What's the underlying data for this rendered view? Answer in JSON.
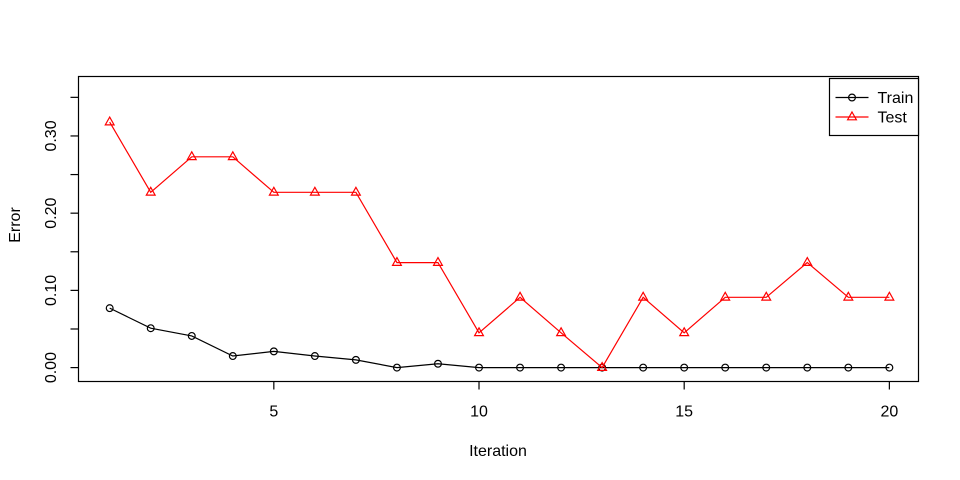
{
  "chart_data": {
    "type": "line",
    "title": "",
    "xlabel": "Iteration",
    "ylabel": "Error",
    "x": [
      1,
      2,
      3,
      4,
      5,
      6,
      7,
      8,
      9,
      10,
      11,
      12,
      13,
      14,
      15,
      16,
      17,
      18,
      19,
      20
    ],
    "series": [
      {
        "name": "Train",
        "color": "#000000",
        "marker": "circle",
        "values": [
          0.077,
          0.051,
          0.041,
          0.015,
          0.021,
          0.015,
          0.01,
          0.0,
          0.005,
          0.0,
          0.0,
          0.0,
          0.0,
          0.0,
          0.0,
          0.0,
          0.0,
          0.0,
          0.0,
          0.0
        ]
      },
      {
        "name": "Test",
        "color": "#ff0000",
        "marker": "triangle",
        "values": [
          0.318,
          0.227,
          0.273,
          0.273,
          0.227,
          0.227,
          0.227,
          0.136,
          0.136,
          0.045,
          0.091,
          0.045,
          0.0,
          0.091,
          0.045,
          0.091,
          0.091,
          0.136,
          0.091,
          0.091
        ]
      }
    ],
    "xlim": [
      0.24,
      20.71
    ],
    "ylim": [
      -0.018,
      0.377
    ],
    "x_ticks": [
      5,
      10,
      15,
      20
    ],
    "y_ticks": [
      0,
      0.05,
      0.1,
      0.15,
      0.2,
      0.25,
      0.3,
      0.35
    ],
    "y_labeled_ticks": [
      "0.00",
      "0.10",
      "0.20",
      "0.30"
    ],
    "grid": false,
    "background": "#ffffff",
    "legend": {
      "position": "topright",
      "entries": [
        "Train",
        "Test"
      ]
    }
  }
}
